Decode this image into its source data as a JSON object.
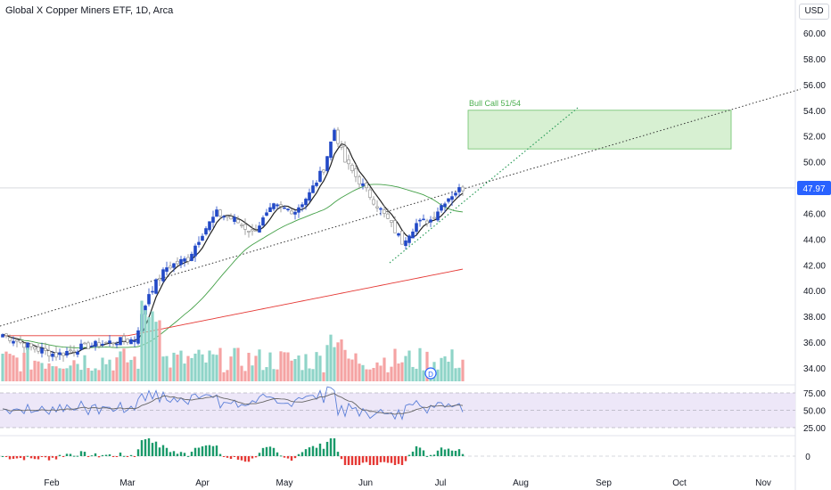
{
  "header": {
    "title": "Global X Copper Miners ETF, 1D, Arca",
    "currency_label": "USD"
  },
  "price_scale": {
    "ticks": [
      "60.00",
      "58.00",
      "56.00",
      "54.00",
      "52.00",
      "50.00",
      "48.00",
      "46.00",
      "44.00",
      "42.00",
      "40.00",
      "38.00",
      "36.00",
      "34.00"
    ],
    "last_price_label": "47.97",
    "last_price_color": "#2962ff"
  },
  "time_axis": {
    "labels": [
      "Feb",
      "Mar",
      "Apr",
      "May",
      "Jun",
      "Jul",
      "Aug",
      "Sep",
      "Oct",
      "Nov"
    ]
  },
  "rsi_scale": {
    "ticks": [
      "75.00",
      "50.00",
      "25.00"
    ]
  },
  "macd_scale": {
    "ticks": [
      "0"
    ]
  },
  "annotations": {
    "bull_call_label": "Bull Call 51/54",
    "event_marker_label": "D"
  },
  "colors": {
    "up": "#2148c6",
    "down": "#ffffff",
    "down_border": "#8a8a8a",
    "vol_up": "#8fd4c8",
    "vol_down": "#f5a3a3",
    "ma_short": "#222222",
    "ma_mid": "#43a047",
    "ma_long": "#e53935",
    "rsi_line": "#5b7fd8",
    "rsi_ma": "#666666",
    "rsi_band": "#ede7f8",
    "hist_pos": "#1a9a6a",
    "hist_neg": "#e53935",
    "zone_fill": "#d7f0d2",
    "zone_border": "#6cc16a",
    "zone_text": "#4caf50"
  },
  "chart_data": {
    "type": "candlestick",
    "title": "Global X Copper Miners ETF, 1D, Arca",
    "y_range": [
      33.0,
      61.5
    ],
    "x_labels": [
      "Feb",
      "Mar",
      "Apr",
      "May",
      "Jun",
      "Jul",
      "Aug",
      "Sep",
      "Oct",
      "Nov"
    ],
    "price_series_approx": {
      "dates": [
        "Jan-10",
        "Jan-24",
        "Feb-07",
        "Feb-21",
        "Mar-06",
        "Mar-20",
        "Apr-03",
        "Apr-17",
        "May-01",
        "May-15",
        "May-20",
        "Jun-03",
        "Jun-10",
        "Jun-24",
        "Jul-08",
        "Jul-12"
      ],
      "close": [
        36.5,
        35.8,
        35.2,
        35.8,
        36.0,
        40.5,
        43.0,
        46.5,
        46.2,
        49.5,
        52.5,
        48.0,
        44.5,
        45.5,
        47.0,
        47.97
      ]
    },
    "last_price": 47.97,
    "moving_averages": [
      "short (black)",
      "50-day (green)",
      "200-day (red)"
    ],
    "bull_call_zone": {
      "label": "Bull Call 51/54",
      "low": 51.0,
      "high": 54.0,
      "start": "Jul-15",
      "end": "Oct-10"
    },
    "trendlines": [
      "dotted support from Jan through Jul extending to Nov",
      "dotted green channel from Jun low up to Aug"
    ],
    "panes": [
      "price + volume",
      "RSI (25/50/75 bands)",
      "MACD histogram"
    ]
  }
}
